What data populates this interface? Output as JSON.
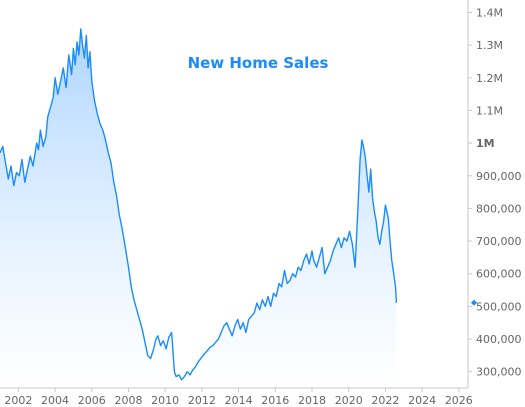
{
  "chart_data": {
    "type": "area",
    "title": "New Home Sales",
    "xlabel": "",
    "ylabel": "",
    "xlim": [
      2001.0,
      2026.5
    ],
    "ylim": [
      250000,
      1420000
    ],
    "x_ticks": [
      2002,
      2004,
      2006,
      2008,
      2010,
      2012,
      2014,
      2016,
      2018,
      2020,
      2022,
      2024,
      2026
    ],
    "x_tick_labels": [
      "2002",
      "2004",
      "2006",
      "2008",
      "2010",
      "2012",
      "2014",
      "2016",
      "2018",
      "2020",
      "2022",
      "2024",
      "2026"
    ],
    "y_ticks": [
      300000,
      400000,
      500000,
      600000,
      700000,
      800000,
      900000,
      1000000,
      1100000,
      1200000,
      1300000,
      1400000
    ],
    "y_tick_labels": [
      "300,000",
      "400,000",
      "500,000",
      "600,000",
      "700,000",
      "800,000",
      "900,000",
      "1M",
      "1.1M",
      "1.2M",
      "1.3M",
      "1.4M"
    ],
    "grid": false,
    "legend": "none",
    "colors": {
      "line": "#1a8cff",
      "fill_top": "#a9d3ff",
      "fill_bottom": "#ffffff",
      "title": "#1a8cff",
      "axis": "#c8c8c8",
      "tick_text": "#666666"
    },
    "last_value_marker": {
      "x": 2022.6,
      "y": 511000
    },
    "series": [
      {
        "values": [
          [
            2001.0,
            970000
          ],
          [
            2001.15,
            990000
          ],
          [
            2001.3,
            940000
          ],
          [
            2001.45,
            890000
          ],
          [
            2001.6,
            930000
          ],
          [
            2001.75,
            870000
          ],
          [
            2001.9,
            910000
          ],
          [
            2002.05,
            900000
          ],
          [
            2002.2,
            950000
          ],
          [
            2002.35,
            880000
          ],
          [
            2002.5,
            920000
          ],
          [
            2002.65,
            960000
          ],
          [
            2002.8,
            930000
          ],
          [
            2003.0,
            1000000
          ],
          [
            2003.1,
            980000
          ],
          [
            2003.2,
            1040000
          ],
          [
            2003.35,
            990000
          ],
          [
            2003.5,
            1020000
          ],
          [
            2003.6,
            1080000
          ],
          [
            2003.75,
            1110000
          ],
          [
            2003.9,
            1140000
          ],
          [
            2004.0,
            1200000
          ],
          [
            2004.15,
            1150000
          ],
          [
            2004.3,
            1190000
          ],
          [
            2004.45,
            1230000
          ],
          [
            2004.6,
            1170000
          ],
          [
            2004.75,
            1270000
          ],
          [
            2004.9,
            1210000
          ],
          [
            2005.0,
            1290000
          ],
          [
            2005.1,
            1240000
          ],
          [
            2005.2,
            1310000
          ],
          [
            2005.3,
            1270000
          ],
          [
            2005.4,
            1350000
          ],
          [
            2005.5,
            1300000
          ],
          [
            2005.6,
            1260000
          ],
          [
            2005.7,
            1330000
          ],
          [
            2005.8,
            1230000
          ],
          [
            2005.9,
            1280000
          ],
          [
            2006.0,
            1190000
          ],
          [
            2006.15,
            1130000
          ],
          [
            2006.3,
            1090000
          ],
          [
            2006.45,
            1060000
          ],
          [
            2006.6,
            1040000
          ],
          [
            2006.75,
            1010000
          ],
          [
            2006.9,
            970000
          ],
          [
            2007.05,
            940000
          ],
          [
            2007.2,
            880000
          ],
          [
            2007.35,
            840000
          ],
          [
            2007.5,
            780000
          ],
          [
            2007.65,
            740000
          ],
          [
            2007.8,
            690000
          ],
          [
            2008.0,
            620000
          ],
          [
            2008.15,
            560000
          ],
          [
            2008.3,
            520000
          ],
          [
            2008.45,
            490000
          ],
          [
            2008.6,
            460000
          ],
          [
            2008.75,
            430000
          ],
          [
            2008.9,
            390000
          ],
          [
            2009.05,
            350000
          ],
          [
            2009.2,
            340000
          ],
          [
            2009.35,
            365000
          ],
          [
            2009.5,
            400000
          ],
          [
            2009.6,
            410000
          ],
          [
            2009.75,
            380000
          ],
          [
            2009.9,
            395000
          ],
          [
            2010.05,
            370000
          ],
          [
            2010.2,
            405000
          ],
          [
            2010.35,
            420000
          ],
          [
            2010.5,
            300000
          ],
          [
            2010.6,
            285000
          ],
          [
            2010.75,
            290000
          ],
          [
            2010.9,
            275000
          ],
          [
            2011.05,
            285000
          ],
          [
            2011.2,
            300000
          ],
          [
            2011.35,
            290000
          ],
          [
            2011.5,
            305000
          ],
          [
            2011.65,
            315000
          ],
          [
            2011.8,
            330000
          ],
          [
            2012.0,
            345000
          ],
          [
            2012.15,
            355000
          ],
          [
            2012.3,
            365000
          ],
          [
            2012.45,
            375000
          ],
          [
            2012.6,
            380000
          ],
          [
            2012.75,
            390000
          ],
          [
            2012.9,
            400000
          ],
          [
            2013.05,
            420000
          ],
          [
            2013.2,
            440000
          ],
          [
            2013.35,
            450000
          ],
          [
            2013.5,
            430000
          ],
          [
            2013.65,
            410000
          ],
          [
            2013.8,
            440000
          ],
          [
            2013.95,
            460000
          ],
          [
            2014.1,
            430000
          ],
          [
            2014.25,
            450000
          ],
          [
            2014.4,
            420000
          ],
          [
            2014.55,
            460000
          ],
          [
            2014.7,
            470000
          ],
          [
            2014.85,
            480000
          ],
          [
            2015.0,
            510000
          ],
          [
            2015.15,
            490000
          ],
          [
            2015.3,
            520000
          ],
          [
            2015.45,
            500000
          ],
          [
            2015.6,
            530000
          ],
          [
            2015.75,
            500000
          ],
          [
            2015.9,
            540000
          ],
          [
            2016.05,
            530000
          ],
          [
            2016.2,
            570000
          ],
          [
            2016.35,
            560000
          ],
          [
            2016.5,
            610000
          ],
          [
            2016.65,
            570000
          ],
          [
            2016.8,
            580000
          ],
          [
            2016.95,
            600000
          ],
          [
            2017.1,
            590000
          ],
          [
            2017.25,
            620000
          ],
          [
            2017.4,
            610000
          ],
          [
            2017.55,
            640000
          ],
          [
            2017.7,
            660000
          ],
          [
            2017.85,
            630000
          ],
          [
            2018.0,
            670000
          ],
          [
            2018.1,
            640000
          ],
          [
            2018.25,
            620000
          ],
          [
            2018.4,
            650000
          ],
          [
            2018.55,
            680000
          ],
          [
            2018.7,
            600000
          ],
          [
            2018.85,
            620000
          ],
          [
            2019.0,
            640000
          ],
          [
            2019.15,
            670000
          ],
          [
            2019.3,
            690000
          ],
          [
            2019.45,
            710000
          ],
          [
            2019.6,
            680000
          ],
          [
            2019.75,
            710000
          ],
          [
            2019.9,
            700000
          ],
          [
            2020.05,
            730000
          ],
          [
            2020.2,
            690000
          ],
          [
            2020.35,
            620000
          ],
          [
            2020.5,
            800000
          ],
          [
            2020.62,
            950000
          ],
          [
            2020.72,
            1010000
          ],
          [
            2020.8,
            990000
          ],
          [
            2020.9,
            960000
          ],
          [
            2021.0,
            900000
          ],
          [
            2021.1,
            850000
          ],
          [
            2021.2,
            920000
          ],
          [
            2021.3,
            830000
          ],
          [
            2021.4,
            790000
          ],
          [
            2021.5,
            760000
          ],
          [
            2021.6,
            710000
          ],
          [
            2021.7,
            690000
          ],
          [
            2021.8,
            730000
          ],
          [
            2021.9,
            760000
          ],
          [
            2022.0,
            810000
          ],
          [
            2022.08,
            790000
          ],
          [
            2022.16,
            770000
          ],
          [
            2022.25,
            700000
          ],
          [
            2022.35,
            640000
          ],
          [
            2022.45,
            600000
          ],
          [
            2022.55,
            560000
          ],
          [
            2022.6,
            511000
          ]
        ]
      }
    ]
  }
}
